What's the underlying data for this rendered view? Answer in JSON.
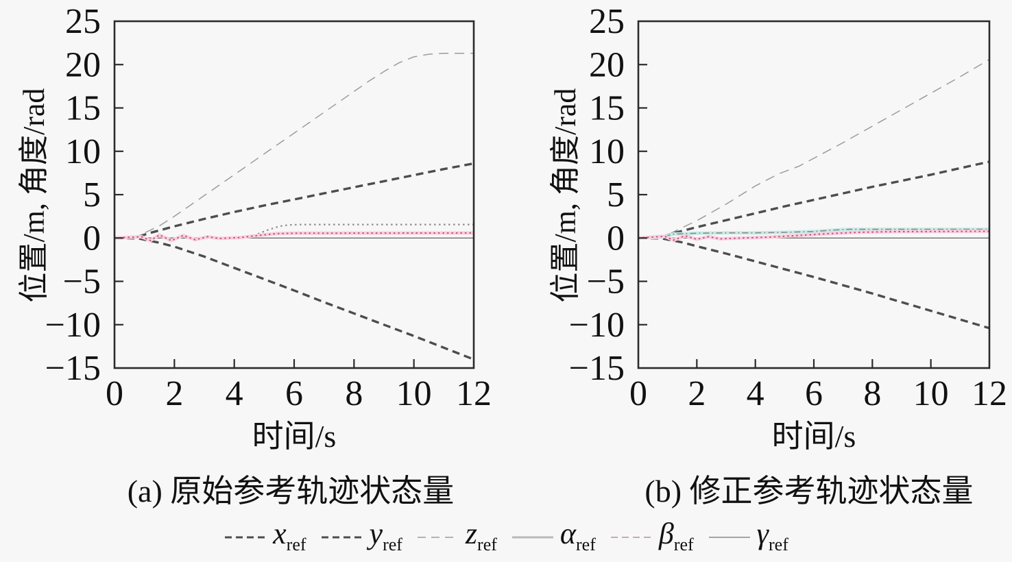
{
  "figure": {
    "background": "#f7f7f7",
    "frame_color": "#2b2b2b",
    "text_color": "#111111"
  },
  "chart_data": {
    "type": "line",
    "y_label": "位置/m, 角度/rad",
    "x_range": [
      0,
      12
    ],
    "y_range": [
      -15,
      25
    ],
    "x_ticks": [
      0,
      2,
      4,
      6,
      8,
      10,
      12
    ],
    "y_ticks": [
      25,
      20,
      15,
      10,
      5,
      0,
      -5,
      -10,
      -15
    ],
    "grid": false,
    "legend_position": "bottom",
    "panels": [
      {
        "id": "a",
        "caption": "(a) 原始参考轨迹状态量",
        "x_label": "时间/s",
        "series": [
          {
            "name": "x_ref",
            "color": "#4d4d4d",
            "width": 3.4,
            "dash": "11,7",
            "points": [
              [
                0,
                0
              ],
              [
                0.8,
                -0.05
              ],
              [
                1.5,
                -0.55
              ],
              [
                2,
                -1
              ],
              [
                3,
                -2.15
              ],
              [
                4,
                -3.45
              ],
              [
                5,
                -4.75
              ],
              [
                6,
                -6.05
              ],
              [
                7,
                -7.4
              ],
              [
                8,
                -8.7
              ],
              [
                9,
                -10
              ],
              [
                10,
                -11.3
              ],
              [
                11,
                -12.65
              ],
              [
                12,
                -14
              ]
            ]
          },
          {
            "name": "y_ref",
            "color": "#4d4d4d",
            "width": 3.4,
            "dash": "11,7",
            "points": [
              [
                0,
                0
              ],
              [
                0.7,
                0.05
              ],
              [
                1.2,
                0.6
              ],
              [
                2,
                1.35
              ],
              [
                3,
                2.2
              ],
              [
                4,
                3
              ],
              [
                5,
                3.75
              ],
              [
                6,
                4.45
              ],
              [
                7,
                5.15
              ],
              [
                8,
                5.85
              ],
              [
                9,
                6.55
              ],
              [
                10,
                7.25
              ],
              [
                11,
                7.95
              ],
              [
                12,
                8.6
              ]
            ]
          },
          {
            "name": "z_ref",
            "color": "#9b9b9b",
            "width": 1.5,
            "dash": "14,9",
            "points": [
              [
                0,
                0
              ],
              [
                0.8,
                0.25
              ],
              [
                1.5,
                1.4
              ],
              [
                2,
                2.5
              ],
              [
                3,
                4.9
              ],
              [
                4,
                7.3
              ],
              [
                5,
                9.7
              ],
              [
                6,
                12.1
              ],
              [
                7,
                14.5
              ],
              [
                8,
                16.9
              ],
              [
                8.5,
                18.1
              ],
              [
                9,
                19.2
              ],
              [
                9.5,
                20.2
              ],
              [
                10,
                20.9
              ],
              [
                10.5,
                21.2
              ],
              [
                11,
                21.3
              ],
              [
                12,
                21.3
              ]
            ]
          },
          {
            "name": "alpha_ref",
            "color": "#8c8c8c",
            "width": 2.2,
            "dash": "2.5,4.5",
            "points": [
              [
                0,
                0
              ],
              [
                4.3,
                0
              ],
              [
                4.7,
                0.35
              ],
              [
                5.1,
                0.9
              ],
              [
                5.5,
                1.35
              ],
              [
                5.8,
                1.5
              ],
              [
                6.2,
                1.55
              ],
              [
                12,
                1.55
              ]
            ]
          },
          {
            "name": "beta_ref",
            "color": "#cb4f7d",
            "width": 2,
            "dash": "2.5,4",
            "band": "#f8d0df",
            "band_width": 5,
            "points": [
              [
                0,
                0
              ],
              [
                0.9,
                0.15
              ],
              [
                1.2,
                -0.3
              ],
              [
                1.5,
                0.35
              ],
              [
                1.9,
                -0.3
              ],
              [
                2.3,
                0.3
              ],
              [
                2.7,
                -0.2
              ],
              [
                3.1,
                0.15
              ],
              [
                3.5,
                -0.05
              ],
              [
                4.2,
                0.05
              ],
              [
                4.8,
                0.3
              ],
              [
                5.4,
                0.5
              ],
              [
                6,
                0.55
              ],
              [
                12,
                0.58
              ]
            ]
          },
          {
            "name": "gamma_ref",
            "color": "#6e6e6e",
            "width": 1.3,
            "dash": "",
            "points": [
              [
                0,
                0
              ],
              [
                12,
                0
              ]
            ]
          }
        ]
      },
      {
        "id": "b",
        "caption": "(b) 修正参考轨迹状态量",
        "x_label": "时间/s",
        "series": [
          {
            "name": "x_ref",
            "color": "#4d4d4d",
            "width": 3.4,
            "dash": "11,7",
            "points": [
              [
                0,
                0
              ],
              [
                0.8,
                -0.05
              ],
              [
                1.5,
                -0.5
              ],
              [
                2,
                -0.95
              ],
              [
                3,
                -1.8
              ],
              [
                4,
                -2.7
              ],
              [
                5,
                -3.6
              ],
              [
                6,
                -4.5
              ],
              [
                7,
                -5.45
              ],
              [
                8,
                -6.4
              ],
              [
                9,
                -7.4
              ],
              [
                10,
                -8.4
              ],
              [
                11,
                -9.4
              ],
              [
                12,
                -10.4
              ]
            ]
          },
          {
            "name": "y_ref",
            "color": "#4d4d4d",
            "width": 3.4,
            "dash": "11,7",
            "points": [
              [
                0,
                0
              ],
              [
                0.7,
                0.05
              ],
              [
                1.2,
                0.55
              ],
              [
                2,
                1.25
              ],
              [
                3,
                2.05
              ],
              [
                4,
                2.85
              ],
              [
                5,
                3.65
              ],
              [
                6,
                4.4
              ],
              [
                7,
                5.15
              ],
              [
                8,
                5.9
              ],
              [
                9,
                6.6
              ],
              [
                10,
                7.3
              ],
              [
                11,
                8.05
              ],
              [
                12,
                8.8
              ]
            ]
          },
          {
            "name": "z_ref",
            "color": "#9b9b9b",
            "width": 1.5,
            "dash": "14,9",
            "points": [
              [
                0,
                0
              ],
              [
                0.9,
                0.2
              ],
              [
                1.5,
                1.2
              ],
              [
                2,
                2
              ],
              [
                3,
                3.9
              ],
              [
                4,
                6
              ],
              [
                4.8,
                7.4
              ],
              [
                5.5,
                8.3
              ],
              [
                6,
                9.2
              ],
              [
                7,
                11
              ],
              [
                8,
                12.9
              ],
              [
                9,
                14.8
              ],
              [
                10,
                16.7
              ],
              [
                11,
                18.6
              ],
              [
                12,
                20.6
              ]
            ]
          },
          {
            "name": "alpha_ref",
            "color": "#8a8a8a",
            "width": 1.6,
            "dash": "9,4,2,4",
            "band": "#c7ebe7",
            "band_width": 5,
            "points": [
              [
                0,
                0
              ],
              [
                0.8,
                0.1
              ],
              [
                1.2,
                0.45
              ],
              [
                2,
                0.55
              ],
              [
                3,
                0.6
              ],
              [
                4,
                0.6
              ],
              [
                5,
                0.65
              ],
              [
                6,
                0.75
              ],
              [
                6.6,
                0.9
              ],
              [
                7.2,
                1
              ],
              [
                8,
                1
              ],
              [
                12,
                1
              ]
            ]
          },
          {
            "name": "beta_ref",
            "color": "#cb4f7d",
            "width": 2,
            "dash": "2.5,4",
            "band": "#f8d0df",
            "band_width": 5,
            "points": [
              [
                0,
                0
              ],
              [
                0.9,
                0.2
              ],
              [
                1.2,
                -0.25
              ],
              [
                1.6,
                0.25
              ],
              [
                2,
                -0.15
              ],
              [
                2.4,
                0.15
              ],
              [
                2.8,
                -0.1
              ],
              [
                3.5,
                0
              ],
              [
                4.5,
                0.1
              ],
              [
                5.5,
                0.3
              ],
              [
                6.5,
                0.5
              ],
              [
                7.5,
                0.65
              ],
              [
                8.5,
                0.72
              ],
              [
                10,
                0.75
              ],
              [
                12,
                0.78
              ]
            ]
          },
          {
            "name": "gamma_ref",
            "color": "#6e6e6e",
            "width": 1.3,
            "dash": "",
            "points": [
              [
                0,
                0
              ],
              [
                12,
                0
              ]
            ]
          }
        ]
      }
    ],
    "legend": [
      {
        "label": "x",
        "sub": "ref",
        "color": "#4d4d4d",
        "dash": "10,6",
        "width": 3
      },
      {
        "label": "y",
        "sub": "ref",
        "color": "#4d4d4d",
        "dash": "10,6",
        "width": 3
      },
      {
        "label": "z",
        "sub": "ref",
        "color": "#9b9b9b",
        "dash": "12,8",
        "width": 1.5
      },
      {
        "label": "α",
        "sub": "ref",
        "color": "#b9b9b9",
        "dash": "",
        "width": 3
      },
      {
        "label": "β",
        "sub": "ref",
        "color": "#c9aab8",
        "dash": "10,6",
        "width": 2
      },
      {
        "label": "γ",
        "sub": "ref",
        "color": "#8a8a8a",
        "dash": "",
        "width": 1.5
      }
    ]
  }
}
